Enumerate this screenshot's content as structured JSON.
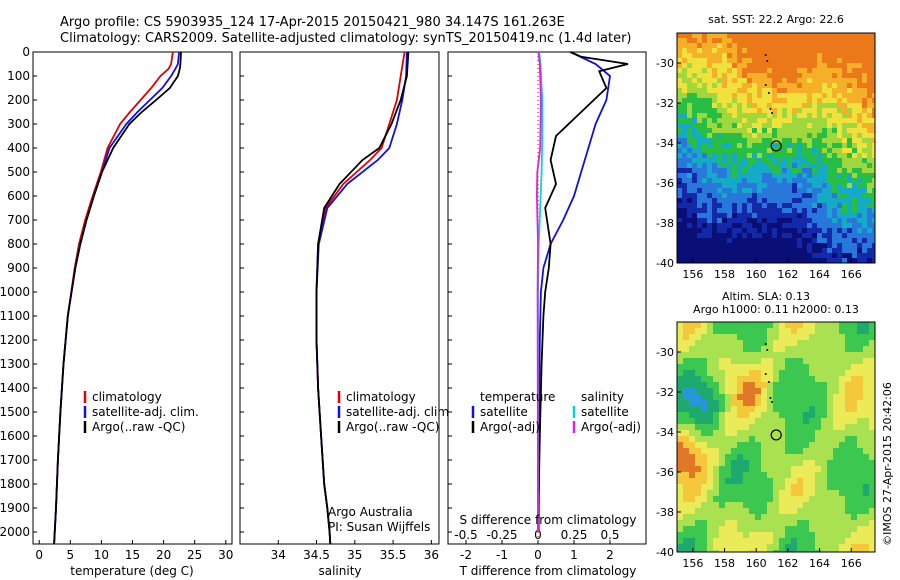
{
  "header": {
    "line1": "Argo profile: CS 5903935_124 17-Apr-2015 20150421_980 34.147S 161.263E",
    "line2": "Climatology: CARS2009. Satellite-adjusted climatology: synTS_20150419.nc (1.4d later)"
  },
  "colors": {
    "climatology": "#e00000",
    "satellite": "#1010e0",
    "argo": "#000000",
    "satellite_salinity": "#00d8d8",
    "argo_salinity": "#e020e0"
  },
  "panels": {
    "temperature": {
      "xlabel": "temperature (deg C)",
      "legend": [
        "climatology",
        "satellite-adj. clim.",
        "Argo(..raw -QC)"
      ]
    },
    "salinity": {
      "xlabel": "salinity",
      "legend": [
        "climatology",
        "satellite-adj. clim.",
        "Argo(..raw -QC)"
      ],
      "note1": "Argo Australia",
      "note2": "PI: Susan Wijffels"
    },
    "difference": {
      "xlabel": "T difference from climatology",
      "toplabel": "S difference from climatology",
      "legend_temperature_title": "temperature",
      "legend_salinity_title": "salinity",
      "legend_temperature": [
        "satellite",
        "Argo(-adj)"
      ],
      "legend_salinity": [
        "satellite",
        "Argo(-adj)"
      ]
    },
    "sst_map": {
      "title": "sat. SST: 22.2  Argo: 22.6",
      "xticks": [
        "156",
        "158",
        "160",
        "162",
        "164",
        "166"
      ],
      "yticks": [
        "-30",
        "-32",
        "-34",
        "-36",
        "-38",
        "-40"
      ]
    },
    "sla_map": {
      "title1": "Altim. SLA: 0.13",
      "title2": "Argo h1000: 0.11 h2000: 0.13",
      "xticks": [
        "156",
        "158",
        "160",
        "162",
        "164",
        "166"
      ],
      "yticks": [
        "-30",
        "-32",
        "-34",
        "-36",
        "-38",
        "-40"
      ]
    },
    "credit": "©IMOS 27-Apr-2015 20:42:06"
  },
  "chart_data": [
    {
      "type": "line",
      "panel": "temperature",
      "xlabel": "temperature (deg C)",
      "xlim": [
        -1,
        31
      ],
      "ylim": [
        2050,
        0
      ],
      "xticks": [
        0,
        5,
        10,
        15,
        20,
        25,
        30
      ],
      "yticks": [
        0,
        100,
        200,
        300,
        400,
        500,
        600,
        700,
        800,
        900,
        1000,
        1100,
        1200,
        1300,
        1400,
        1500,
        1600,
        1700,
        1800,
        1900,
        2000
      ],
      "series": [
        {
          "name": "climatology",
          "x": [
            21.5,
            21.2,
            20.8,
            19.5,
            18.0,
            16.3,
            14.6,
            13.0,
            11.0,
            9.9,
            8.6,
            7.4,
            6.4,
            5.7,
            4.6,
            3.9,
            3.4,
            3.0,
            2.7,
            2.4
          ],
          "y": [
            0,
            50,
            70,
            100,
            150,
            200,
            250,
            300,
            400,
            500,
            600,
            700,
            800,
            900,
            1100,
            1300,
            1500,
            1700,
            1900,
            2050
          ]
        },
        {
          "name": "satellite-adj. clim.",
          "x": [
            22.5,
            22.3,
            21.9,
            21.2,
            19.8,
            17.8,
            15.8,
            14.0,
            11.3,
            10.1,
            8.8,
            7.6,
            6.6,
            5.8,
            4.6,
            3.9,
            3.4,
            3.0,
            2.7,
            2.4
          ],
          "y": [
            0,
            50,
            70,
            100,
            150,
            200,
            250,
            300,
            400,
            500,
            600,
            700,
            800,
            900,
            1100,
            1300,
            1500,
            1700,
            1900,
            2050
          ]
        },
        {
          "name": "Argo(..raw -QC)",
          "x": [
            22.8,
            22.7,
            22.6,
            22.3,
            21.0,
            18.8,
            16.5,
            14.5,
            11.9,
            10.1,
            8.8,
            7.6,
            6.6,
            5.8,
            4.6,
            3.9,
            3.4,
            3.0,
            2.7,
            2.4
          ],
          "y": [
            0,
            50,
            70,
            100,
            150,
            200,
            250,
            300,
            400,
            500,
            600,
            700,
            800,
            900,
            1100,
            1300,
            1500,
            1700,
            1900,
            2050
          ]
        }
      ]
    },
    {
      "type": "line",
      "panel": "salinity",
      "xlabel": "salinity",
      "xlim": [
        33.5,
        36.1
      ],
      "ylim": [
        2050,
        0
      ],
      "xticks": [
        34,
        34.5,
        35,
        35.5,
        36
      ],
      "series": [
        {
          "name": "climatology",
          "x": [
            35.65,
            35.6,
            35.55,
            35.45,
            35.35,
            35.2,
            34.85,
            34.62,
            34.52,
            34.5,
            34.5,
            34.52,
            34.56,
            34.6,
            34.64,
            34.67,
            34.68
          ],
          "y": [
            0,
            100,
            200,
            300,
            400,
            450,
            550,
            650,
            800,
            1000,
            1200,
            1400,
            1600,
            1800,
            1900,
            2000,
            2050
          ]
        },
        {
          "name": "satellite-adj. clim.",
          "x": [
            35.68,
            35.67,
            35.62,
            35.55,
            35.45,
            35.3,
            34.9,
            34.64,
            34.53,
            34.5,
            34.5,
            34.52,
            34.56,
            34.6,
            34.64,
            34.67,
            34.68
          ],
          "y": [
            0,
            100,
            200,
            300,
            400,
            450,
            550,
            650,
            800,
            1000,
            1200,
            1400,
            1600,
            1800,
            1900,
            2000,
            2050
          ]
        },
        {
          "name": "Argo(..raw -QC)",
          "x": [
            35.7,
            35.68,
            35.6,
            35.48,
            35.32,
            35.1,
            34.8,
            34.6,
            34.52,
            34.5,
            34.5,
            34.52,
            34.56,
            34.6,
            34.64,
            34.67,
            34.68
          ],
          "y": [
            0,
            100,
            200,
            300,
            400,
            450,
            550,
            650,
            800,
            1000,
            1200,
            1400,
            1600,
            1800,
            1900,
            2000,
            2050
          ]
        }
      ]
    },
    {
      "type": "line",
      "panel": "difference",
      "xlabel": "T difference from climatology",
      "toplabel": "S difference from climatology",
      "xlim": [
        -2.5,
        3.0
      ],
      "ylim": [
        2050,
        0
      ],
      "xticks_T": [
        -2,
        -1,
        0,
        1,
        2
      ],
      "xticks_S": [
        -0.5,
        -0.25,
        0,
        0.25,
        0.5
      ],
      "series": [
        {
          "name": "satellite",
          "quantity": "temperature",
          "x": [
            0.9,
            1.6,
            2.0,
            1.9,
            1.6,
            1.4,
            1.2,
            1.0,
            0.7,
            0.35,
            0.15,
            0.08,
            0.05,
            0.03,
            0.02
          ],
          "y": [
            0,
            50,
            100,
            200,
            300,
            400,
            500,
            600,
            700,
            800,
            900,
            1000,
            1200,
            1500,
            2000
          ]
        },
        {
          "name": "Argo(-adj)",
          "quantity": "temperature",
          "x": [
            0.9,
            1.2,
            2.5,
            1.7,
            1.9,
            1.2,
            0.5,
            0.35,
            0.5,
            0.2,
            0.35,
            0.3,
            0.2,
            0.15,
            0.1,
            0.05,
            0.0
          ],
          "y": [
            0,
            20,
            50,
            80,
            150,
            250,
            350,
            450,
            550,
            650,
            800,
            900,
            1000,
            1100,
            1300,
            1600,
            2000
          ]
        },
        {
          "name": "satellite",
          "quantity": "salinity",
          "x": [
            0.03,
            0.07,
            0.12,
            0.12,
            0.1,
            0.06,
            0.02,
            0.0,
            0.0,
            0.0,
            0.0
          ],
          "y": [
            0,
            50,
            200,
            350,
            500,
            650,
            800,
            1000,
            1300,
            1600,
            2000
          ]
        },
        {
          "name": "Argo(-adj)",
          "quantity": "salinity",
          "x": [
            0.01,
            0.05,
            0.08,
            0.06,
            -0.02,
            -0.03,
            0.0,
            -0.01,
            0.0
          ],
          "y": [
            0,
            50,
            200,
            400,
            500,
            600,
            800,
            1000,
            2000
          ]
        }
      ]
    },
    {
      "type": "heatmap",
      "panel": "sst_map",
      "title": "sat. SST: 22.2  Argo: 22.6",
      "xlim": [
        155,
        167.5
      ],
      "ylim": [
        -40,
        -28.5
      ],
      "marker": {
        "lon": 161.263,
        "lat": -34.147
      }
    },
    {
      "type": "heatmap",
      "panel": "sla_map",
      "title": "Altim. SLA: 0.13",
      "xlim": [
        155,
        167.5
      ],
      "ylim": [
        -40,
        -28.5
      ],
      "marker": {
        "lon": 161.263,
        "lat": -34.147
      }
    }
  ]
}
